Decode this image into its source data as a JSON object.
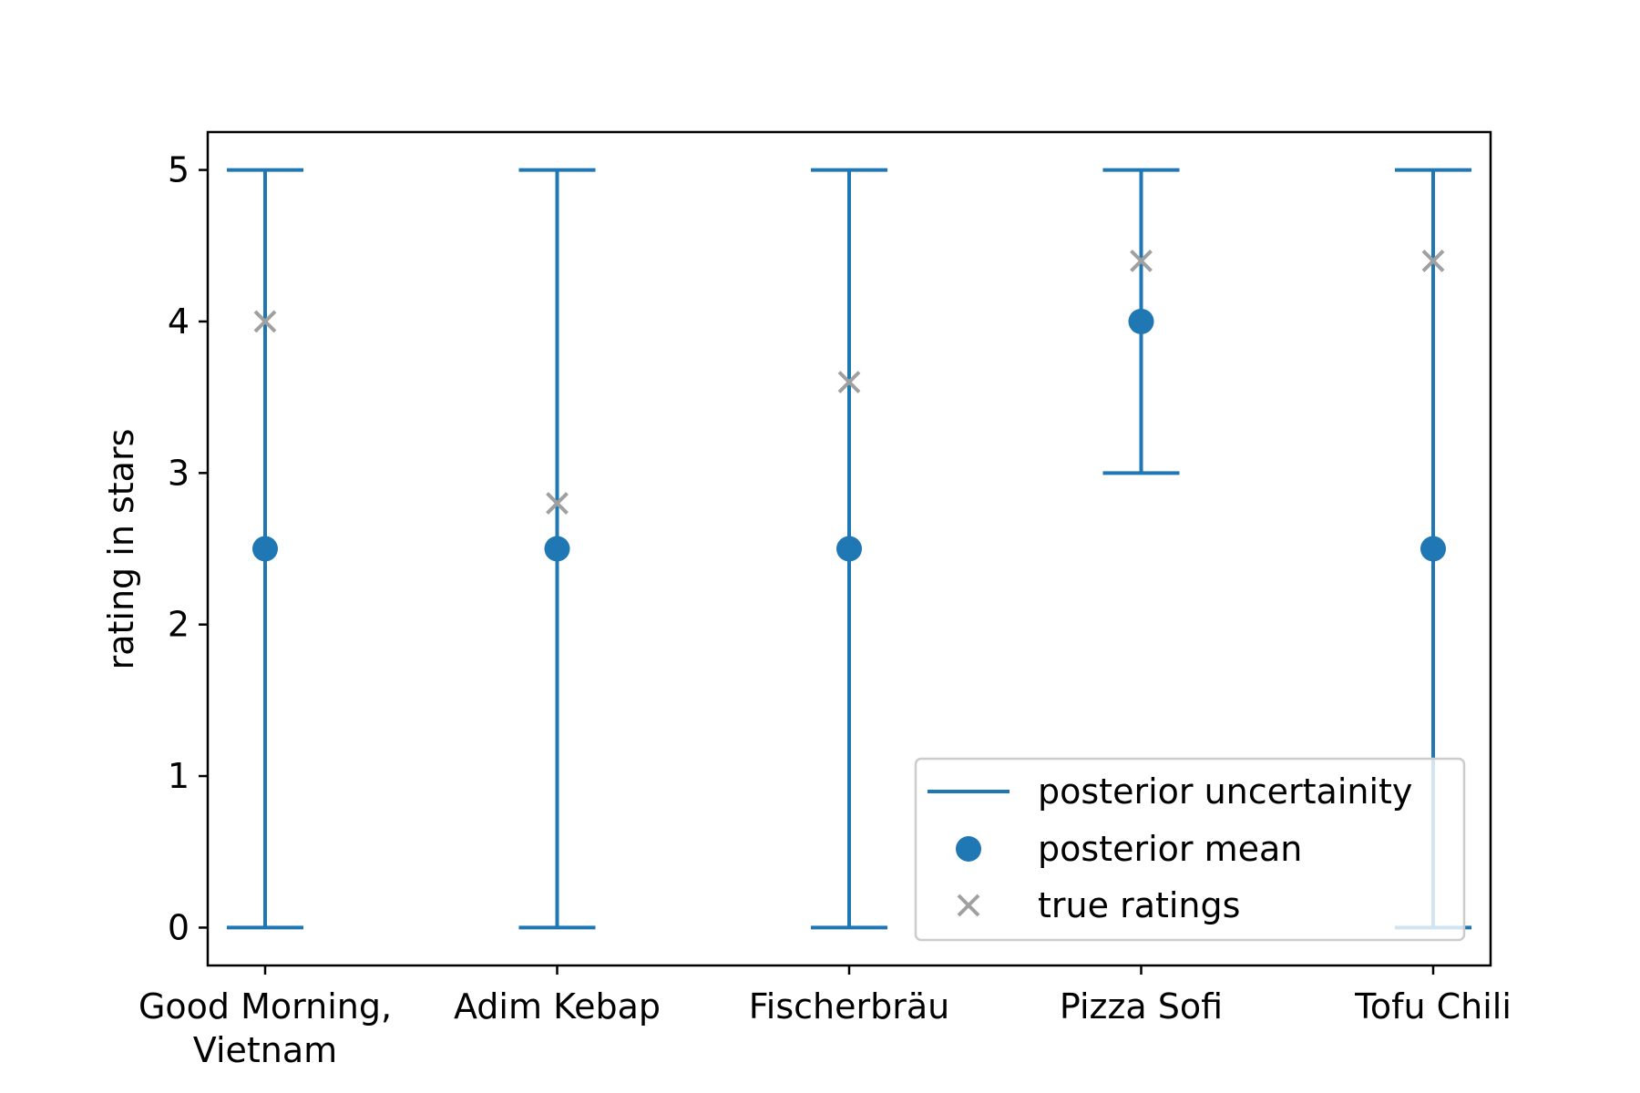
{
  "chart_data": {
    "type": "errorbar",
    "title": "",
    "xlabel": "",
    "ylabel": "rating in stars",
    "categories": [
      "Good Morning,\nVietnam",
      "Adim Kebap",
      "Fischerbräu",
      "Pizza Sofi",
      "Tofu Chili"
    ],
    "ylim": [
      -0.25,
      5.25
    ],
    "yticks": [
      0,
      1,
      2,
      3,
      4,
      5
    ],
    "grid": false,
    "legend_position": "lower right",
    "series": [
      {
        "name": "posterior uncertainity",
        "kind": "errorbar",
        "lower": [
          0,
          0,
          0,
          3,
          0
        ],
        "upper": [
          5,
          5,
          5,
          5,
          5
        ]
      },
      {
        "name": "posterior mean",
        "kind": "scatter",
        "marker": "circle",
        "values": [
          2.5,
          2.5,
          2.5,
          4.0,
          2.5
        ]
      },
      {
        "name": "true ratings",
        "kind": "scatter",
        "marker": "x",
        "values": [
          4.0,
          2.8,
          3.6,
          4.4,
          4.4
        ]
      }
    ],
    "colors": {
      "uncertainty": "#1f77b4",
      "mean": "#1f77b4",
      "true": "#a0a0a0"
    }
  }
}
